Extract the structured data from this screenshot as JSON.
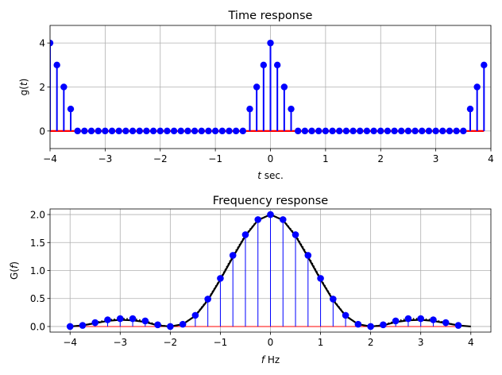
{
  "chart_data": [
    {
      "type": "stem",
      "title": "Time response",
      "xlabel": "t sec.",
      "xlabel_italic": "t",
      "xlabel_rest": " sec.",
      "ylabel": "g(t)",
      "ylabel_fn": "g(",
      "ylabel_var": "t",
      "ylabel_close": ")",
      "xlim": [
        -4,
        4
      ],
      "ylim": [
        -0.8,
        4.8
      ],
      "xticks": [
        -4,
        -3,
        -2,
        -1,
        0,
        1,
        2,
        3,
        4
      ],
      "xtick_labels": [
        "−4",
        "−3",
        "−2",
        "−1",
        "0",
        "1",
        "2",
        "3",
        "4"
      ],
      "yticks": [
        0,
        2,
        4
      ],
      "ytick_labels": [
        "0",
        "2",
        "4"
      ],
      "grid": true,
      "colors": {
        "stem": "#0000ff",
        "baseline": "#ff0000"
      },
      "series": [
        {
          "x": [
            -4.0,
            -3.875,
            -3.75,
            -3.625,
            -3.5,
            -3.375,
            -3.25,
            -3.125,
            -3.0,
            -2.875,
            -2.75,
            -2.625,
            -2.5,
            -2.375,
            -2.25,
            -2.125,
            -2.0,
            -1.875,
            -1.75,
            -1.625,
            -1.5,
            -1.375,
            -1.25,
            -1.125,
            -1.0,
            -0.875,
            -0.75,
            -0.625,
            -0.5,
            -0.375,
            -0.25,
            -0.125,
            0.0,
            0.125,
            0.25,
            0.375,
            0.5,
            0.625,
            0.75,
            0.875,
            1.0,
            1.125,
            1.25,
            1.375,
            1.5,
            1.625,
            1.75,
            1.875,
            2.0,
            2.125,
            2.25,
            2.375,
            2.5,
            2.625,
            2.75,
            2.875,
            3.0,
            3.125,
            3.25,
            3.375,
            3.5,
            3.625,
            3.75,
            3.875
          ],
          "y": [
            4,
            3,
            2,
            1,
            0,
            0,
            0,
            0,
            0,
            0,
            0,
            0,
            0,
            0,
            0,
            0,
            0,
            0,
            0,
            0,
            0,
            0,
            0,
            0,
            0,
            0,
            0,
            0,
            0,
            1,
            2,
            3,
            4,
            3,
            2,
            1,
            0,
            0,
            0,
            0,
            0,
            0,
            0,
            0,
            0,
            0,
            0,
            0,
            0,
            0,
            0,
            0,
            0,
            0,
            0,
            0,
            0,
            0,
            0,
            0,
            0,
            1,
            2,
            3
          ]
        }
      ]
    },
    {
      "type": "stem",
      "title": "Frequency response",
      "xlabel": "f Hz",
      "xlabel_italic": "f",
      "xlabel_rest": " Hz",
      "ylabel": "G(f)",
      "ylabel_fn": "G(",
      "ylabel_var": "f",
      "ylabel_close": ")",
      "xlim": [
        -4.4,
        4.4
      ],
      "ylim": [
        -0.1,
        2.1
      ],
      "xticks": [
        -4,
        -3,
        -2,
        -1,
        0,
        1,
        2,
        3,
        4
      ],
      "xtick_labels": [
        "−4",
        "−3",
        "−2",
        "−1",
        "0",
        "1",
        "2",
        "3",
        "4"
      ],
      "yticks": [
        0.0,
        0.5,
        1.0,
        1.5,
        2.0
      ],
      "ytick_labels": [
        "0.0",
        "0.5",
        "1.0",
        "1.5",
        "2.0"
      ],
      "grid": true,
      "colors": {
        "stem": "#0000ff",
        "baseline": "#ff0000",
        "curve": "#000000"
      },
      "series": [
        {
          "x": [
            -4.0,
            -3.75,
            -3.5,
            -3.25,
            -3.0,
            -2.75,
            -2.5,
            -2.25,
            -2.0,
            -1.75,
            -1.5,
            -1.25,
            -1.0,
            -0.75,
            -0.5,
            -0.25,
            0.0,
            0.25,
            0.5,
            0.75,
            1.0,
            1.25,
            1.5,
            1.75,
            2.0,
            2.25,
            2.5,
            2.75,
            3.0,
            3.25,
            3.5,
            3.75
          ],
          "y": [
            0.0,
            0.02,
            0.07,
            0.12,
            0.14,
            0.14,
            0.1,
            0.03,
            0.0,
            0.04,
            0.2,
            0.49,
            0.86,
            1.27,
            1.64,
            1.91,
            2.0,
            1.91,
            1.64,
            1.27,
            0.86,
            0.49,
            0.2,
            0.04,
            0.0,
            0.03,
            0.1,
            0.14,
            0.14,
            0.12,
            0.07,
            0.02
          ]
        }
      ],
      "curve": {
        "x": [
          -4.0,
          -3.75,
          -3.5,
          -3.25,
          -3.0,
          -2.75,
          -2.5,
          -2.25,
          -2.0,
          -1.75,
          -1.5,
          -1.25,
          -1.0,
          -0.75,
          -0.5,
          -0.25,
          0.0,
          0.25,
          0.5,
          0.75,
          1.0,
          1.25,
          1.5,
          1.75,
          2.0,
          2.25,
          2.5,
          2.75,
          3.0,
          3.25,
          3.5,
          3.75,
          4.0
        ],
        "y": [
          0.0,
          0.02,
          0.06,
          0.1,
          0.12,
          0.11,
          0.08,
          0.02,
          0.0,
          0.04,
          0.19,
          0.47,
          0.84,
          1.24,
          1.62,
          1.9,
          2.0,
          1.9,
          1.62,
          1.24,
          0.84,
          0.47,
          0.19,
          0.04,
          0.0,
          0.02,
          0.08,
          0.11,
          0.12,
          0.1,
          0.06,
          0.02,
          0.0
        ]
      },
      "dotted": {
        "x": [
          -4.0,
          -3.75,
          -3.5,
          -3.25,
          -3.0,
          -2.75,
          -2.5,
          -2.25,
          -2.0,
          -1.75,
          -1.5,
          -1.25,
          -1.0,
          -0.75,
          -0.5,
          -0.25,
          0.0,
          0.25,
          0.5,
          0.75,
          1.0,
          1.25,
          1.5,
          1.75,
          2.0,
          2.25,
          2.5,
          2.75,
          3.0,
          3.25,
          3.5,
          3.75
        ],
        "y": [
          0.0,
          0.02,
          0.07,
          0.12,
          0.14,
          0.14,
          0.1,
          0.03,
          0.0,
          0.04,
          0.2,
          0.49,
          0.86,
          1.27,
          1.64,
          1.91,
          2.0,
          1.91,
          1.64,
          1.27,
          0.86,
          0.49,
          0.2,
          0.04,
          0.0,
          0.03,
          0.1,
          0.14,
          0.14,
          0.12,
          0.07,
          0.02
        ]
      }
    }
  ]
}
